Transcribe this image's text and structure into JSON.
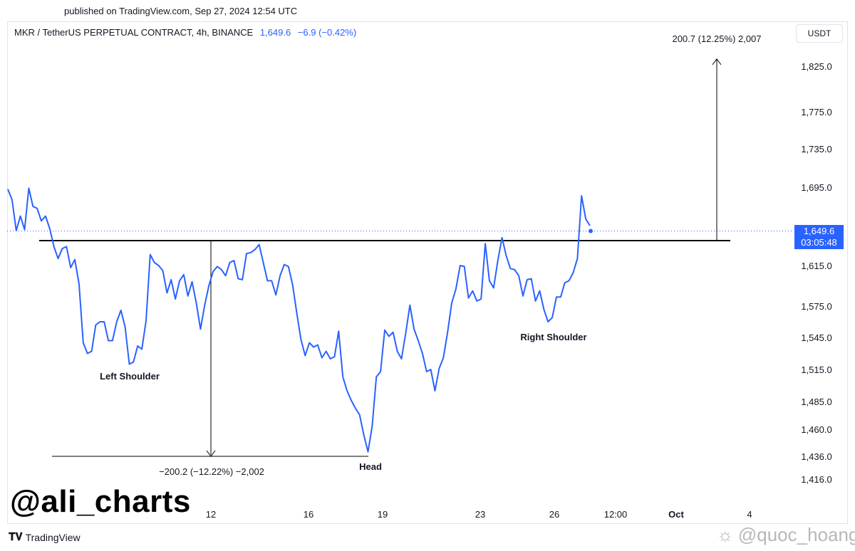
{
  "published": "published on TradingView.com, Sep 27, 2024 12:54 UTC",
  "header": {
    "symbol": "MKR / TetherUS PERPETUAL CONTRACT, 4h, BINANCE",
    "price": "1,649.6",
    "change": "−6.9 (−0.42%)"
  },
  "currency": "USDT",
  "price_tag": {
    "price": "1,649.6",
    "countdown": "03:05:48"
  },
  "watermark": "@ali_charts",
  "brand": "TradingView",
  "user_watermark": "@quoc_hoang",
  "colors": {
    "line": "#2962ff",
    "neckline": "#000000",
    "accent": "#2962ff"
  },
  "chart_data": {
    "type": "line",
    "title": "",
    "xlabel": "",
    "ylabel": "",
    "ylim": [
      1400,
      1865
    ],
    "y_ticks": [
      {
        "value": 1825,
        "label": "1,825.0"
      },
      {
        "value": 1775,
        "label": "1,775.0"
      },
      {
        "value": 1735,
        "label": "1,735.0"
      },
      {
        "value": 1695,
        "label": "1,695.0"
      },
      {
        "value": 1655,
        "label": "1,655.0"
      },
      {
        "value": 1615,
        "label": "1,615.0"
      },
      {
        "value": 1575,
        "label": "1,575.0"
      },
      {
        "value": 1545,
        "label": "1,545.0"
      },
      {
        "value": 1515,
        "label": "1,515.0"
      },
      {
        "value": 1485,
        "label": "1,485.0"
      },
      {
        "value": 1460,
        "label": "1,460.0"
      },
      {
        "value": 1436,
        "label": "1,436.0"
      },
      {
        "value": 1416,
        "label": "1,416.0"
      }
    ],
    "x_ticks": [
      "12",
      "16",
      "19",
      "23",
      "26",
      "12:00",
      "Oct",
      "4"
    ],
    "series": [
      {
        "values": [
          1693,
          1682,
          1650,
          1665,
          1651,
          1694,
          1675,
          1673,
          1660,
          1665,
          1652,
          1634,
          1622,
          1632,
          1634,
          1613,
          1621,
          1597,
          1540,
          1530,
          1532,
          1557,
          1560,
          1560,
          1542,
          1542,
          1560,
          1571,
          1555,
          1520,
          1522,
          1537,
          1534,
          1561,
          1626,
          1618,
          1615,
          1610,
          1588,
          1601,
          1582,
          1600,
          1606,
          1585,
          1599,
          1578,
          1553,
          1576,
          1595,
          1609,
          1614,
          1611,
          1605,
          1618,
          1620,
          1602,
          1601,
          1627,
          1628,
          1631,
          1636,
          1618,
          1600,
          1600,
          1586,
          1605,
          1616,
          1614,
          1596,
          1568,
          1543,
          1528,
          1540,
          1536,
          1538,
          1526,
          1532,
          1525,
          1527,
          1551,
          1508,
          1495,
          1486,
          1479,
          1473,
          1455,
          1440,
          1463,
          1508,
          1513,
          1552,
          1546,
          1550,
          1532,
          1525,
          1549,
          1576,
          1553,
          1542,
          1530,
          1513,
          1515,
          1495,
          1516,
          1526,
          1550,
          1578,
          1592,
          1615,
          1614,
          1583,
          1590,
          1580,
          1582,
          1637,
          1600,
          1593,
          1620,
          1643,
          1625,
          1612,
          1611,
          1605,
          1585,
          1601,
          1602,
          1580,
          1590,
          1572,
          1560,
          1564,
          1584,
          1584,
          1598,
          1600,
          1608,
          1622,
          1686,
          1662,
          1655
        ]
      }
    ],
    "annotations": [
      {
        "text": "Left Shoulder"
      },
      {
        "text": "Head"
      },
      {
        "text": "Right Shoulder"
      },
      {
        "text": "−200.2 (−12.22%) −2,002"
      },
      {
        "text": "200.7 (12.25%) 2,007"
      }
    ],
    "neckline": 1640,
    "head_low": 1436,
    "target": 1843,
    "last_price": 1649.6
  }
}
